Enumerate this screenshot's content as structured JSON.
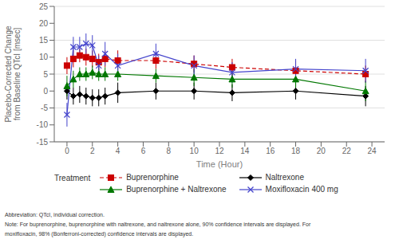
{
  "chart_data": {
    "type": "line",
    "x_label": "Time (Hour)",
    "y_label": "Placebo-Corrected Change\nfrom Baseline QTcI [msec]",
    "x": [
      0,
      0.5,
      1,
      1.5,
      2,
      2.5,
      3,
      4,
      7,
      10,
      13,
      18,
      23.5
    ],
    "xlim": [
      -1,
      25
    ],
    "xticks": [
      0,
      2,
      4,
      6,
      8,
      10,
      12,
      14,
      16,
      18,
      20,
      22,
      24
    ],
    "ylim": [
      -15,
      25
    ],
    "yticks": [
      -15,
      -10,
      -5,
      0,
      5,
      10,
      15,
      20,
      25
    ],
    "grid": true,
    "legend": "bottom",
    "legend_title": "Treatment",
    "series": [
      {
        "name": "Buprenorphine",
        "color": "#cc0000",
        "marker": "square",
        "line_style": "dashed",
        "values": [
          7.5,
          9.5,
          10.5,
          10.0,
          9.5,
          8.5,
          9.5,
          9.0,
          9.0,
          8.0,
          7.0,
          6.0,
          5.0
        ],
        "ci_lower": [
          5.0,
          7.0,
          8.5,
          7.5,
          7.0,
          6.0,
          7.0,
          6.0,
          6.5,
          5.5,
          4.5,
          3.0,
          2.5
        ],
        "ci_upper": [
          10.0,
          12.0,
          12.5,
          12.5,
          12.0,
          11.0,
          12.0,
          12.0,
          11.5,
          10.5,
          9.5,
          9.0,
          7.5
        ]
      },
      {
        "name": "Naltrexone",
        "color": "#000000",
        "marker": "diamond",
        "line_style": "solid",
        "values": [
          0.0,
          -1.5,
          -1.0,
          -1.5,
          -2.0,
          -2.0,
          -1.5,
          -0.5,
          0.0,
          0.0,
          -0.5,
          0.0,
          -1.5
        ],
        "ci_lower": [
          -2.5,
          -4.0,
          -3.5,
          -4.0,
          -4.5,
          -4.5,
          -4.0,
          -3.5,
          -2.5,
          -2.5,
          -3.0,
          -2.5,
          -4.5
        ],
        "ci_upper": [
          2.5,
          1.0,
          1.5,
          1.0,
          0.5,
          0.5,
          1.0,
          2.5,
          2.5,
          2.5,
          2.0,
          2.5,
          1.5
        ]
      },
      {
        "name": "Buprenorphine + Naltrexone",
        "color": "#007700",
        "marker": "triangle",
        "line_style": "solid",
        "values": [
          1.5,
          3.5,
          5.0,
          5.0,
          5.5,
          5.0,
          5.0,
          5.0,
          4.5,
          4.0,
          3.5,
          3.5,
          0.0
        ],
        "ci_lower": [
          -1.5,
          1.0,
          3.0,
          3.0,
          3.5,
          3.0,
          3.0,
          3.0,
          2.5,
          1.5,
          1.0,
          1.0,
          -3.0
        ],
        "ci_upper": [
          4.5,
          6.0,
          7.0,
          7.0,
          7.5,
          7.0,
          7.0,
          7.0,
          6.5,
          6.5,
          6.0,
          6.0,
          3.0
        ]
      },
      {
        "name": "Moxifloxacin 400 mg",
        "color": "#4444cc",
        "marker": "x",
        "line_style": "solid",
        "values": [
          -7.0,
          13.0,
          13.0,
          14.0,
          13.5,
          7.5,
          11.0,
          7.5,
          11.0,
          7.5,
          5.5,
          6.5,
          6.0
        ],
        "ci_lower": [
          -10.5,
          10.0,
          10.0,
          11.0,
          10.5,
          4.5,
          7.5,
          4.0,
          8.0,
          4.5,
          2.5,
          3.5,
          2.5
        ],
        "ci_upper": [
          -3.5,
          16.0,
          16.0,
          17.0,
          16.5,
          10.5,
          14.5,
          11.0,
          14.0,
          10.5,
          8.5,
          9.5,
          9.5
        ]
      }
    ],
    "annotations": [
      "Abbreviation: QTcI, individual correction.",
      "Note: For buprenorphine, buprenorphine with naltrexone, and naltrexone alone, 90% confidence intervals are displayed. For",
      "moxifloxacin, 98% (Bonferroni-corrected) confidence intervals are displayed."
    ]
  }
}
